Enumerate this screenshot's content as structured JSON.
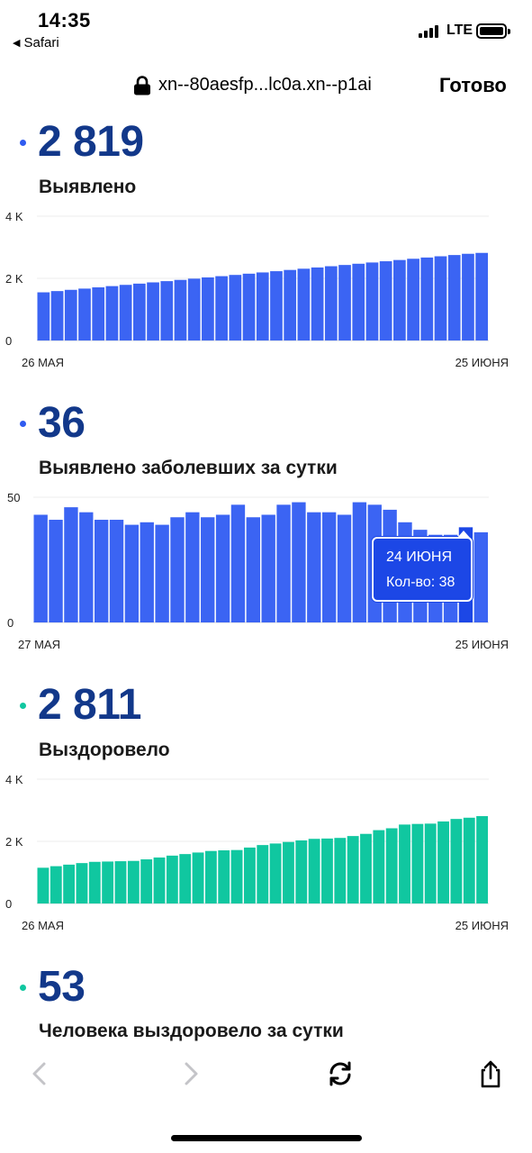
{
  "status_bar": {
    "time": "14:35",
    "back_app": "Safari",
    "network": "LTE",
    "icons": [
      "signal-icon",
      "battery-icon",
      "back-triangle-icon"
    ]
  },
  "address_bar": {
    "url": "xn--80aesfp...lc0a.xn--p1ai",
    "done_label": "Готово",
    "icons": [
      "lock-icon"
    ]
  },
  "sections": [
    {
      "value": "2 819",
      "label": "Выявлено",
      "dot_color": "#2f5bf0",
      "x_start": "26 МАЯ",
      "x_end": "25 ИЮНЯ",
      "y_ticks": [
        "4 K",
        "2 K",
        "0"
      ]
    },
    {
      "value": "36",
      "label": "Выявлено заболевших за сутки",
      "dot_color": "#2f5bf0",
      "x_start": "27 МАЯ",
      "x_end": "25 ИЮНЯ",
      "y_ticks": [
        "50",
        "0"
      ],
      "tooltip": {
        "date": "24 ИЮНЯ",
        "count_label": "Кол-во: 38"
      }
    },
    {
      "value": "2 811",
      "label": "Выздоровело",
      "dot_color": "#10c7a0",
      "x_start": "26 МАЯ",
      "x_end": "25 ИЮНЯ",
      "y_ticks": [
        "4 K",
        "2 K",
        "0"
      ]
    },
    {
      "value": "53",
      "label": "Человека выздоровело за сутки",
      "dot_color": "#10c7a0"
    }
  ],
  "toolbar": {
    "icons": [
      "back-chevron-icon",
      "forward-chevron-icon",
      "reload-icon",
      "share-icon"
    ]
  },
  "chart_data": [
    {
      "type": "bar",
      "title": "Выявлено",
      "color": "#3b64f3",
      "x_start": "26 МАЯ",
      "x_end": "25 ИЮНЯ",
      "ylim": [
        0,
        4000
      ],
      "y_ticks": [
        0,
        2000,
        4000
      ],
      "values": [
        1550,
        1590,
        1630,
        1670,
        1710,
        1750,
        1790,
        1830,
        1870,
        1910,
        1950,
        1990,
        2030,
        2070,
        2110,
        2150,
        2190,
        2230,
        2270,
        2310,
        2350,
        2390,
        2430,
        2470,
        2510,
        2550,
        2590,
        2630,
        2670,
        2710,
        2750,
        2790,
        2819
      ]
    },
    {
      "type": "bar",
      "title": "Выявлено заболевших за сутки",
      "color": "#3b64f3",
      "highlight_color": "#1c47e6",
      "highlight_index": 28,
      "x_start": "27 МАЯ",
      "x_end": "25 ИЮНЯ",
      "ylim": [
        0,
        50
      ],
      "y_ticks": [
        0,
        50
      ],
      "values": [
        43,
        41,
        46,
        44,
        41,
        41,
        39,
        40,
        39,
        42,
        44,
        42,
        43,
        47,
        42,
        43,
        47,
        48,
        44,
        44,
        43,
        48,
        47,
        45,
        40,
        37,
        35,
        35,
        38,
        36
      ]
    },
    {
      "type": "bar",
      "title": "Выздоровело",
      "color": "#10c7a0",
      "x_start": "26 МАЯ",
      "x_end": "25 ИЮНЯ",
      "ylim": [
        0,
        4000
      ],
      "y_ticks": [
        0,
        2000,
        4000
      ],
      "values": [
        1150,
        1200,
        1250,
        1300,
        1340,
        1350,
        1360,
        1370,
        1420,
        1480,
        1540,
        1590,
        1640,
        1690,
        1710,
        1720,
        1800,
        1880,
        1930,
        1980,
        2030,
        2080,
        2090,
        2110,
        2170,
        2240,
        2360,
        2420,
        2540,
        2560,
        2570,
        2640,
        2720,
        2760,
        2811
      ]
    }
  ]
}
